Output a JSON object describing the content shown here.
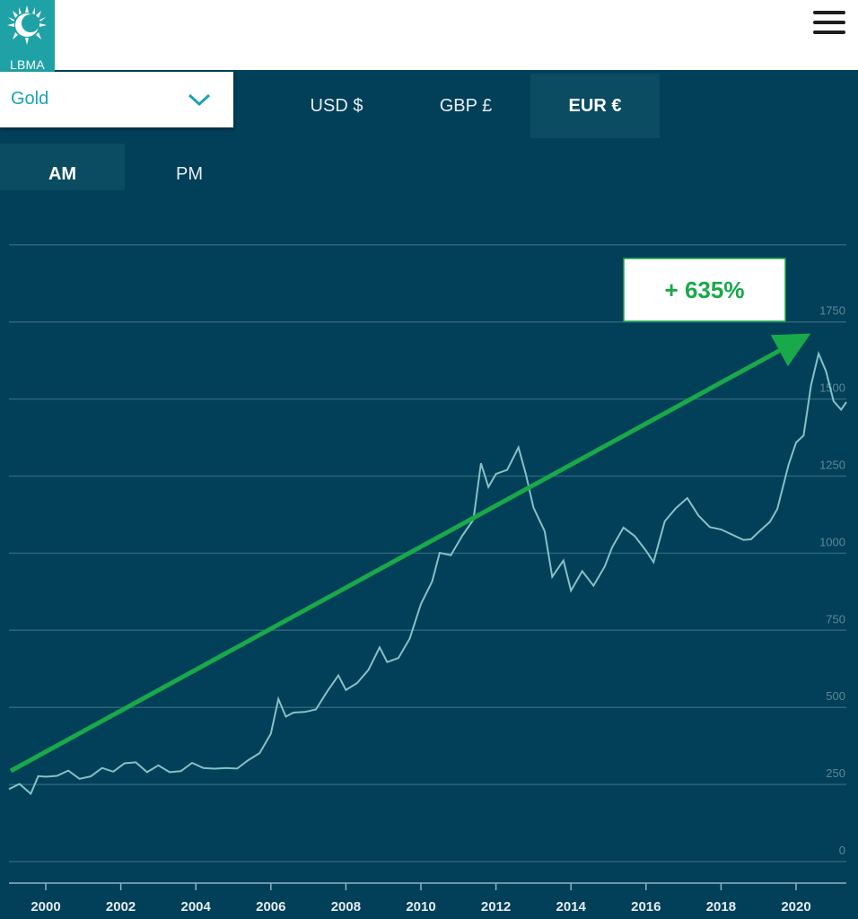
{
  "header": {
    "logo_text": "LBMA",
    "menu_icon": "hamburger-menu-icon"
  },
  "metal_select": {
    "selected": "Gold",
    "icon": "chevron-down-icon"
  },
  "currency_tabs": [
    {
      "label": "USD $",
      "active": false
    },
    {
      "label": "GBP £",
      "active": false
    },
    {
      "label": "EUR €",
      "active": true
    }
  ],
  "session_tabs": [
    {
      "label": "AM",
      "active": true
    },
    {
      "label": "PM",
      "active": false
    }
  ],
  "colors": {
    "background": "#023f58",
    "line": "#7cc6c7",
    "trend_arrow": "#19a84a",
    "accent": "#1fa2a6",
    "grid": "#2c6479"
  },
  "annotation": {
    "text": "+ 635%"
  },
  "chart_data": {
    "type": "line",
    "title": "",
    "xlabel": "",
    "ylabel": "",
    "x_ticks": [
      "2000",
      "2002",
      "2004",
      "2006",
      "2008",
      "2010",
      "2012",
      "2014",
      "2016",
      "2018",
      "2020"
    ],
    "y_ticks": [
      "0",
      "250",
      "500",
      "750",
      "1000",
      "1250",
      "1500",
      "1750"
    ],
    "xlim": [
      1999.0,
      2021.5
    ],
    "ylim": [
      0,
      1750
    ],
    "grid": true,
    "series": [
      {
        "x": [
          1999.0,
          1999.3,
          1999.6,
          1999.8,
          2000.0,
          2000.3,
          2000.6,
          2000.9,
          2001.2,
          2001.5,
          2001.8,
          2002.1,
          2002.4,
          2002.7,
          2003.0,
          2003.3,
          2003.6,
          2003.9,
          2004.2,
          2004.5,
          2004.8,
          2005.1,
          2005.4,
          2005.7,
          2006.0,
          2006.2,
          2006.4,
          2006.6,
          2006.9,
          2007.2,
          2007.5,
          2007.8,
          2008.0,
          2008.3,
          2008.6,
          2008.9,
          2009.1,
          2009.4,
          2009.7,
          2010.0,
          2010.3,
          2010.5,
          2010.8,
          2011.1,
          2011.4,
          2011.6,
          2011.8,
          2012.0,
          2012.3,
          2012.6,
          2012.8,
          2013.0,
          2013.3,
          2013.5,
          2013.8,
          2014.0,
          2014.3,
          2014.6,
          2014.9,
          2015.1,
          2015.4,
          2015.7,
          2016.0,
          2016.2,
          2016.5,
          2016.8,
          2017.1,
          2017.4,
          2017.7,
          2018.0,
          2018.3,
          2018.6,
          2018.8,
          2019.0,
          2019.3,
          2019.5,
          2019.8,
          2020.0,
          2020.2,
          2020.4,
          2020.6,
          2020.8,
          2021.0,
          2021.2,
          2021.4
        ],
        "y": [
          235,
          250,
          225,
          270,
          275,
          285,
          290,
          270,
          285,
          300,
          295,
          310,
          320,
          295,
          305,
          290,
          300,
          315,
          305,
          310,
          300,
          305,
          320,
          350,
          420,
          520,
          470,
          490,
          480,
          495,
          560,
          600,
          560,
          570,
          620,
          700,
          640,
          660,
          730,
          830,
          910,
          1010,
          990,
          1060,
          1100,
          1290,
          1220,
          1250,
          1270,
          1350,
          1250,
          1150,
          1080,
          920,
          980,
          870,
          940,
          900,
          950,
          1020,
          1090,
          1050,
          1010,
          980,
          1100,
          1150,
          1170,
          1120,
          1090,
          1070,
          1060,
          1050,
          1040,
          1070,
          1110,
          1140,
          1290,
          1350,
          1380,
          1550,
          1640,
          1590,
          1500,
          1460,
          1490
        ]
      }
    ]
  }
}
